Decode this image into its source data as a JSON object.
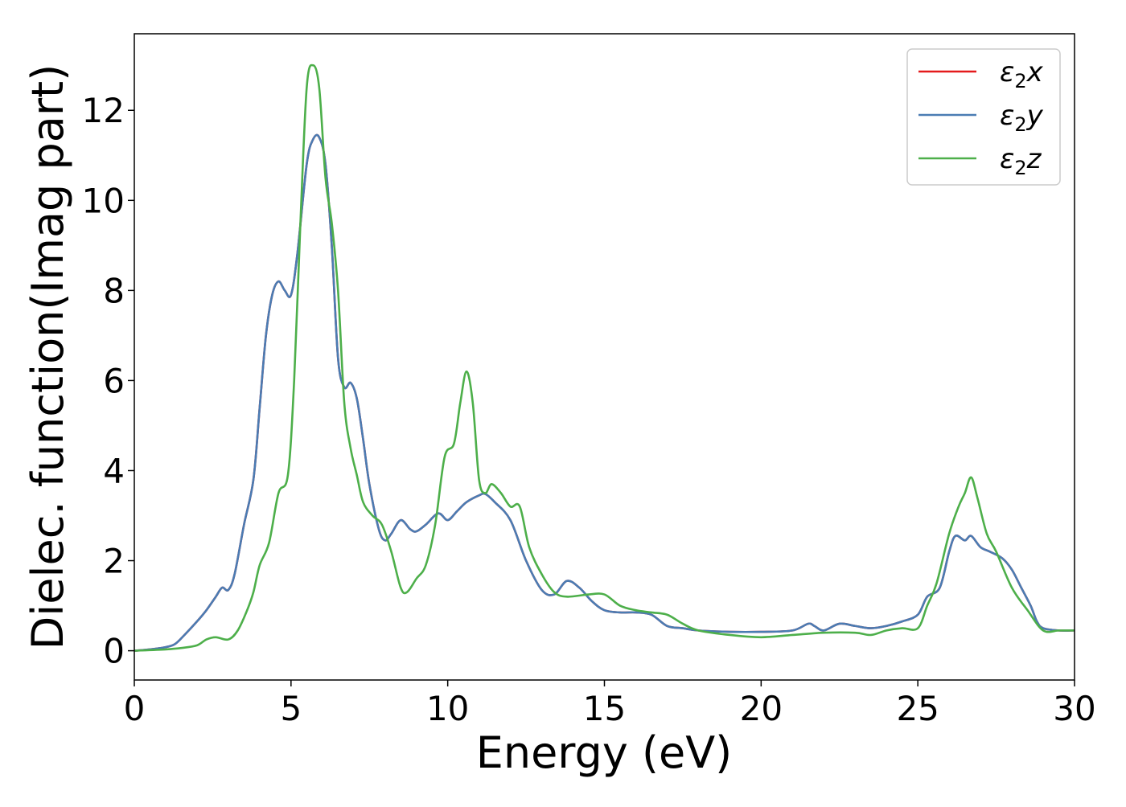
{
  "chart_data": {
    "type": "line",
    "title": "",
    "xlabel": "Energy (eV)",
    "ylabel": "Dielec. function(Imag part)",
    "xlim": [
      0,
      30
    ],
    "ylim": [
      -0.65,
      13.7
    ],
    "xticks": [
      0,
      5,
      10,
      15,
      20,
      25,
      30
    ],
    "yticks": [
      0,
      2,
      4,
      6,
      8,
      10,
      12
    ],
    "grid": false,
    "legend_position": "top-right",
    "series": [
      {
        "name": "ε₂x",
        "legend": {
          "base": "ε",
          "sub": "2",
          "axis": "x"
        },
        "color": "#e41a1c",
        "x": [
          0,
          0.5,
          1.0,
          1.3,
          1.6,
          2.0,
          2.3,
          2.6,
          2.8,
          3.0,
          3.2,
          3.5,
          3.8,
          4.0,
          4.2,
          4.4,
          4.6,
          4.8,
          5.0,
          5.2,
          5.5,
          5.7,
          5.9,
          6.1,
          6.3,
          6.5,
          6.7,
          6.9,
          7.1,
          7.3,
          7.5,
          7.8,
          8.0,
          8.2,
          8.5,
          8.8,
          9.0,
          9.3,
          9.7,
          10.0,
          10.3,
          10.6,
          11.0,
          11.2,
          11.5,
          12.0,
          12.5,
          13.0,
          13.4,
          13.8,
          14.2,
          14.6,
          15.0,
          15.5,
          16.0,
          16.5,
          17.0,
          17.5,
          18.0,
          19.0,
          20.0,
          21.0,
          21.5,
          21.7,
          22.0,
          22.5,
          23.0,
          23.5,
          24.0,
          24.5,
          25.0,
          25.3,
          25.7,
          26.0,
          26.2,
          26.5,
          26.7,
          27.0,
          27.3,
          27.7,
          28.0,
          28.3,
          28.6,
          28.8,
          29.0,
          29.5,
          30.0
        ],
        "y": [
          0.0,
          0.03,
          0.08,
          0.15,
          0.35,
          0.65,
          0.9,
          1.2,
          1.4,
          1.35,
          1.7,
          2.8,
          3.8,
          5.4,
          7.0,
          7.9,
          8.2,
          8.0,
          7.9,
          8.8,
          10.8,
          11.35,
          11.4,
          10.8,
          9.0,
          6.5,
          5.85,
          5.95,
          5.6,
          4.7,
          3.7,
          2.7,
          2.45,
          2.6,
          2.9,
          2.7,
          2.65,
          2.8,
          3.05,
          2.9,
          3.1,
          3.3,
          3.45,
          3.48,
          3.3,
          2.9,
          2.0,
          1.35,
          1.25,
          1.55,
          1.4,
          1.1,
          0.9,
          0.85,
          0.85,
          0.8,
          0.55,
          0.5,
          0.45,
          0.42,
          0.42,
          0.45,
          0.6,
          0.55,
          0.45,
          0.6,
          0.55,
          0.5,
          0.55,
          0.65,
          0.8,
          1.2,
          1.4,
          2.2,
          2.55,
          2.45,
          2.55,
          2.3,
          2.2,
          2.05,
          1.8,
          1.4,
          1.0,
          0.65,
          0.5,
          0.45,
          0.45
        ]
      },
      {
        "name": "ε₂y",
        "legend": {
          "base": "ε",
          "sub": "2",
          "axis": "y"
        },
        "color": "#4a7cb3",
        "x": [
          0,
          0.5,
          1.0,
          1.3,
          1.6,
          2.0,
          2.3,
          2.6,
          2.8,
          3.0,
          3.2,
          3.5,
          3.8,
          4.0,
          4.2,
          4.4,
          4.6,
          4.8,
          5.0,
          5.2,
          5.5,
          5.7,
          5.9,
          6.1,
          6.3,
          6.5,
          6.7,
          6.9,
          7.1,
          7.3,
          7.5,
          7.8,
          8.0,
          8.2,
          8.5,
          8.8,
          9.0,
          9.3,
          9.7,
          10.0,
          10.3,
          10.6,
          11.0,
          11.2,
          11.5,
          12.0,
          12.5,
          13.0,
          13.4,
          13.8,
          14.2,
          14.6,
          15.0,
          15.5,
          16.0,
          16.5,
          17.0,
          17.5,
          18.0,
          19.0,
          20.0,
          21.0,
          21.5,
          21.7,
          22.0,
          22.5,
          23.0,
          23.5,
          24.0,
          24.5,
          25.0,
          25.3,
          25.7,
          26.0,
          26.2,
          26.5,
          26.7,
          27.0,
          27.3,
          27.7,
          28.0,
          28.3,
          28.6,
          28.8,
          29.0,
          29.5,
          30.0
        ],
        "y": [
          0.0,
          0.03,
          0.08,
          0.15,
          0.35,
          0.65,
          0.9,
          1.2,
          1.4,
          1.35,
          1.7,
          2.8,
          3.8,
          5.4,
          7.0,
          7.9,
          8.2,
          8.0,
          7.9,
          8.8,
          10.8,
          11.35,
          11.4,
          10.8,
          9.0,
          6.5,
          5.85,
          5.95,
          5.6,
          4.7,
          3.7,
          2.7,
          2.45,
          2.6,
          2.9,
          2.7,
          2.65,
          2.8,
          3.05,
          2.9,
          3.1,
          3.3,
          3.45,
          3.48,
          3.3,
          2.9,
          2.0,
          1.35,
          1.25,
          1.55,
          1.4,
          1.1,
          0.9,
          0.85,
          0.85,
          0.8,
          0.55,
          0.5,
          0.45,
          0.42,
          0.42,
          0.45,
          0.6,
          0.55,
          0.45,
          0.6,
          0.55,
          0.5,
          0.55,
          0.65,
          0.8,
          1.2,
          1.4,
          2.2,
          2.55,
          2.45,
          2.55,
          2.3,
          2.2,
          2.05,
          1.8,
          1.4,
          1.0,
          0.65,
          0.5,
          0.45,
          0.45
        ]
      },
      {
        "name": "ε₂z",
        "legend": {
          "base": "ε",
          "sub": "2",
          "axis": "z"
        },
        "color": "#4daf4a",
        "x": [
          0,
          1.0,
          1.5,
          2.0,
          2.3,
          2.6,
          3.0,
          3.3,
          3.6,
          3.8,
          4.0,
          4.3,
          4.6,
          4.9,
          5.1,
          5.3,
          5.5,
          5.7,
          5.9,
          6.1,
          6.3,
          6.5,
          6.7,
          6.9,
          7.1,
          7.3,
          7.6,
          7.9,
          8.2,
          8.5,
          8.7,
          9.0,
          9.3,
          9.6,
          9.9,
          10.2,
          10.4,
          10.6,
          10.8,
          11.0,
          11.2,
          11.4,
          11.7,
          12.0,
          12.3,
          12.6,
          13.0,
          13.4,
          13.8,
          14.5,
          15.0,
          15.5,
          16.0,
          16.5,
          17.0,
          17.5,
          18.0,
          19.0,
          20.0,
          21.0,
          22.0,
          23.0,
          23.5,
          24.0,
          24.5,
          25.0,
          25.3,
          25.6,
          26.0,
          26.3,
          26.5,
          26.7,
          26.9,
          27.2,
          27.5,
          28.0,
          28.5,
          29.0,
          29.5,
          30.0
        ],
        "y": [
          0.0,
          0.03,
          0.06,
          0.12,
          0.25,
          0.3,
          0.25,
          0.45,
          0.9,
          1.3,
          1.9,
          2.4,
          3.5,
          3.9,
          6.0,
          9.5,
          12.5,
          13.0,
          12.5,
          10.5,
          9.5,
          8.0,
          5.5,
          4.5,
          3.9,
          3.3,
          3.0,
          2.8,
          2.2,
          1.4,
          1.3,
          1.6,
          1.9,
          2.8,
          4.3,
          4.6,
          5.5,
          6.2,
          5.5,
          3.8,
          3.5,
          3.7,
          3.5,
          3.2,
          3.2,
          2.3,
          1.7,
          1.3,
          1.2,
          1.25,
          1.25,
          1.0,
          0.9,
          0.85,
          0.8,
          0.6,
          0.45,
          0.35,
          0.3,
          0.35,
          0.4,
          0.4,
          0.35,
          0.45,
          0.5,
          0.5,
          1.0,
          1.5,
          2.6,
          3.2,
          3.5,
          3.85,
          3.4,
          2.6,
          2.2,
          1.4,
          0.9,
          0.45,
          0.45,
          0.45
        ]
      }
    ]
  }
}
